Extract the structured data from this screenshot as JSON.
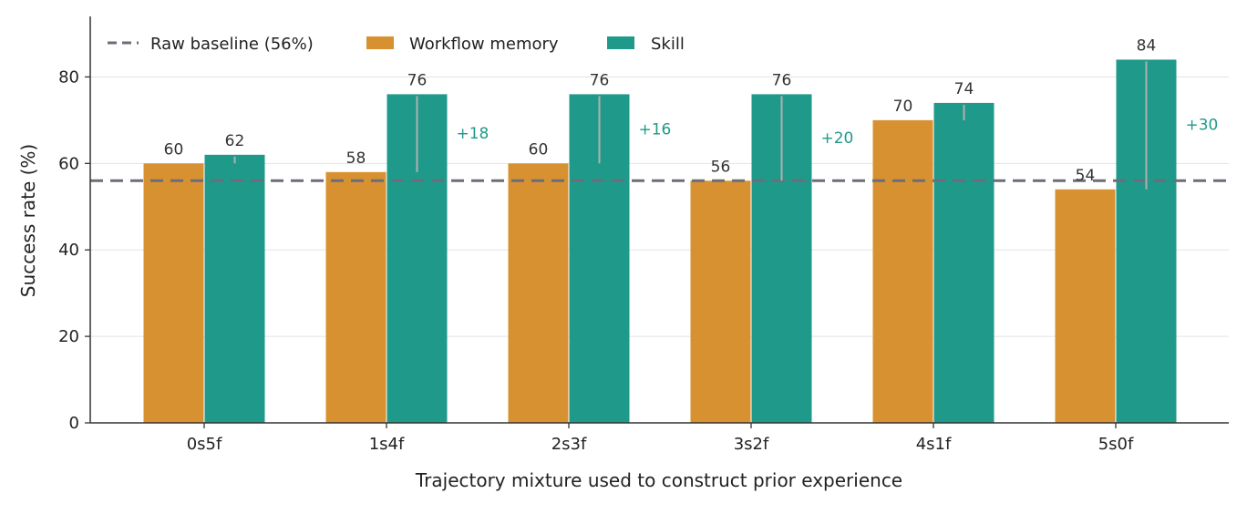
{
  "chart_data": {
    "type": "bar",
    "title": "",
    "xlabel": "Trajectory mixture used to construct prior experience",
    "ylabel": "Success rate (%)",
    "categories": [
      "0s5f",
      "1s4f",
      "2s3f",
      "3s2f",
      "4s1f",
      "5s0f"
    ],
    "series": [
      {
        "name": "Workflow memory",
        "color": "#d89130",
        "values": [
          60,
          58,
          60,
          56,
          70,
          54
        ]
      },
      {
        "name": "Skill",
        "color": "#1f9a8a",
        "values": [
          62,
          76,
          76,
          76,
          74,
          84
        ]
      }
    ],
    "baseline": {
      "label": "Raw baseline (56%)",
      "value": 56,
      "color": "#6b6e7a"
    },
    "deltas": [
      "",
      "+18",
      "+16",
      "+20",
      "",
      "+30"
    ],
    "delta_color": "#1f9a8a",
    "range_line_color": "#b0b0b0",
    "ylim": [
      0,
      94
    ],
    "yticks": [
      0,
      20,
      40,
      60,
      80
    ],
    "grid": true,
    "legend_position": "top-left"
  }
}
